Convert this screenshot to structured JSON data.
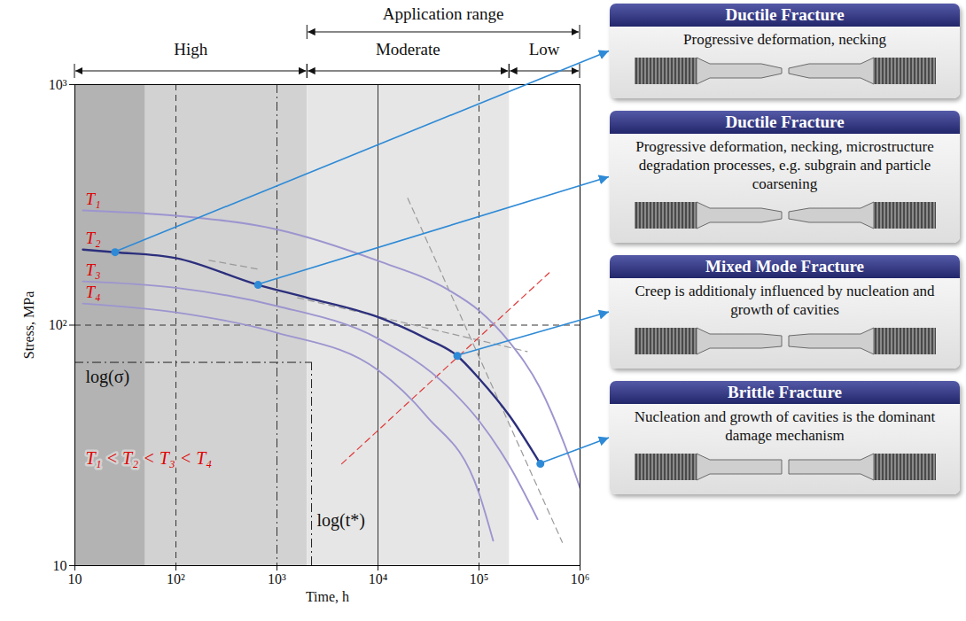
{
  "chart_data": {
    "type": "line",
    "xlabel": "Time, h",
    "ylabel": "Stress, MPa",
    "log": true,
    "grid": false,
    "xlim": [
      10,
      1000000
    ],
    "xticks": [
      10,
      {
        "value": 100,
        "label": "10²"
      },
      {
        "value": 1000,
        "label": "10³"
      },
      {
        "value": 10000,
        "label": "10⁴"
      },
      {
        "value": 100000,
        "label": "10⁵"
      },
      {
        "value": 1000000,
        "label": "10⁶"
      }
    ],
    "ylim": [
      10,
      1000
    ],
    "yticks": [
      10,
      {
        "value": 100,
        "label": "10²"
      },
      {
        "value": 1000,
        "label": "10³"
      }
    ],
    "series": [
      {
        "name": "T₁",
        "color": "#9c95cf",
        "x": [
          12,
          100,
          1000,
          10000,
          50000,
          100000,
          200000,
          400000,
          700000,
          1000000
        ],
        "values": [
          300,
          285,
          250,
          185,
          140,
          115,
          85,
          55,
          32,
          21
        ]
      },
      {
        "name": "T₂",
        "color": "#2c2f7c",
        "x": [
          12,
          25,
          100,
          650,
          2000,
          10000,
          30000,
          61000,
          100000,
          200000,
          405000
        ],
        "values": [
          206,
          201,
          190,
          147,
          130,
          108,
          88,
          74.5,
          60,
          42,
          26.5
        ]
      },
      {
        "name": "T₃",
        "color": "#9c95cf",
        "x": [
          12,
          100,
          1000,
          10000,
          50000,
          100000,
          200000,
          380000
        ],
        "values": [
          152,
          143,
          120,
          88,
          55,
          40,
          26,
          15.6
        ]
      },
      {
        "name": "T₄",
        "color": "#9c95cf",
        "x": [
          12,
          100,
          1000,
          10000,
          30000,
          100000,
          138000
        ],
        "values": [
          123,
          113,
          93,
          65,
          42,
          20,
          12.7
        ]
      }
    ],
    "shaded_regions": [
      {
        "x1": 10,
        "x2": 50,
        "color": "#b3b3b3"
      },
      {
        "x1": 50,
        "x2": 2000,
        "color": "#d2d2d2"
      },
      {
        "x1": 2000,
        "x2": 200000,
        "color": "#e6e6e6"
      }
    ],
    "application_range": {
      "title": "Application range",
      "x1": 2000,
      "x2": 1000000,
      "ranges": [
        {
          "label": "High",
          "x1": 10,
          "x2": 2000
        },
        {
          "label": "Moderate",
          "x1": 2000,
          "x2": 200000
        },
        {
          "label": "Low",
          "x1": 200000,
          "x2": 1000000
        }
      ]
    },
    "reference_lines": {
      "x": [
        {
          "value": 100,
          "line_style": "dashed"
        },
        {
          "value": 1000,
          "line_style": "dashdot"
        },
        {
          "value": 10000,
          "line_style": "solid"
        },
        {
          "value": 100000,
          "line_style": "dashed"
        }
      ],
      "y": [
        {
          "value": 100,
          "line_style": "dashed"
        }
      ]
    },
    "characteristic_point": {
      "x": 2200,
      "y": 70,
      "x_label": "log(t*)",
      "y_label": "log(σ)",
      "line_style": "dashdot"
    },
    "guide_lines": [
      {
        "x": [
          213,
          650
        ],
        "values": [
          186,
          171
        ],
        "color": "#9a9a9a",
        "line_style": "dashed"
      },
      {
        "x": [
          1600,
          300000
        ],
        "values": [
          130,
          77.6
        ],
        "color": "#9a9a9a",
        "line_style": "dashed"
      },
      {
        "x": [
          19700,
          668000
        ],
        "values": [
          337,
          12.5
        ],
        "color": "#9a9a9a",
        "line_style": "dashed"
      },
      {
        "x": [
          4370,
          494000
        ],
        "values": [
          26.5,
          165
        ],
        "color": "#e03a3a",
        "line_style": "dashed"
      }
    ],
    "annotation": "T₁ < T₂ < T₃ < T₄",
    "callouts": [
      {
        "x": 25,
        "y": 201,
        "title": "Ductile Fracture",
        "text": "Progressive deformation, necking"
      },
      {
        "x": 650,
        "y": 147,
        "title": "Ductile Fracture",
        "text": "Progressive deformation, necking, microstructure degradation processes, e.g. subgrain and particle coarsening"
      },
      {
        "x": 61000,
        "y": 74.5,
        "title": "Mixed Mode Fracture",
        "text": "Creep is additionaly influenced by nucleation and growth of cavities"
      },
      {
        "x": 405000,
        "y": 26.5,
        "title": "Brittle Fracture",
        "text": "Nucleation and growth of cavities is the dominant damage mechanism"
      }
    ]
  }
}
